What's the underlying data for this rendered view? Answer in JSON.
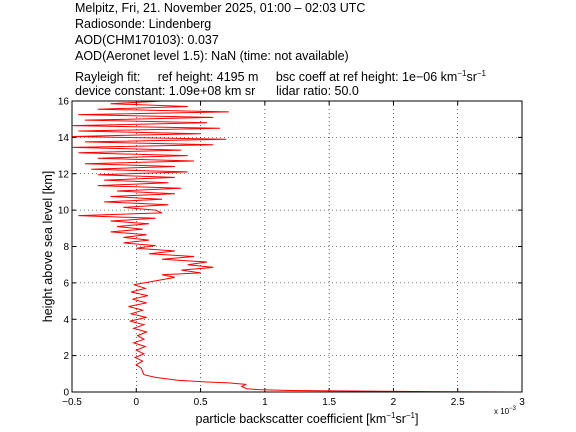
{
  "header": {
    "line1": "Melpitz, Fri, 21. November 2025, 01:00 – 02:03 UTC",
    "line2": "Radiosonde: Lindenberg",
    "line3": "AOD(CHM170103): 0.037",
    "line4": "AOD(Aeronet level 1.5): NaN   (time: not available)",
    "rayleigh_label": "Rayleigh fit:",
    "ref_height": "ref height: 4195 m",
    "bsc_coeff_prefix": "bsc coeff at ref height: 1e−06 km",
    "bsc_coeff_sup1": "−1",
    "bsc_coeff_mid": "sr",
    "bsc_coeff_sup2": "−1",
    "device_constant": "device constant: 1.09e+08 km sr",
    "lidar_ratio": "lidar ratio: 50.0"
  },
  "chart_data": {
    "type": "line",
    "xlabel_prefix": "particle backscatter coefficient [km",
    "xlabel_sup1": "−1",
    "xlabel_mid": "sr",
    "xlabel_sup2": "−1",
    "xlabel_suffix": "]",
    "ylabel": "height above sea level [km]",
    "x_exponent_label": "x 10",
    "x_exponent_sup": "−3",
    "xlim": [
      -0.5,
      3
    ],
    "ylim": [
      0,
      16
    ],
    "x_scale_factor": 0.001,
    "x_ticks": [
      -0.5,
      0,
      0.5,
      1,
      1.5,
      2,
      2.5,
      3
    ],
    "x_tick_labels": [
      "−0.5",
      "0",
      "0.5",
      "1",
      "1.5",
      "2",
      "2.5",
      "3"
    ],
    "y_ticks": [
      0,
      2,
      4,
      6,
      8,
      10,
      12,
      14,
      16
    ],
    "y_tick_labels": [
      "0",
      "2",
      "4",
      "6",
      "8",
      "10",
      "12",
      "14",
      "16"
    ],
    "grid": true,
    "series": [
      {
        "color": "#ff0000",
        "points": [
          [
            3.0,
            0.0
          ],
          [
            2.3,
            0.02
          ],
          [
            1.2,
            0.08
          ],
          [
            0.95,
            0.13
          ],
          [
            0.86,
            0.18
          ],
          [
            0.82,
            0.3
          ],
          [
            0.85,
            0.42
          ],
          [
            0.72,
            0.5
          ],
          [
            0.55,
            0.55
          ],
          [
            0.32,
            0.65
          ],
          [
            0.15,
            0.8
          ],
          [
            0.06,
            0.95
          ],
          [
            0.05,
            1.1
          ],
          [
            0.04,
            1.3
          ],
          [
            0.0,
            1.5
          ],
          [
            0.05,
            1.7
          ],
          [
            -0.01,
            1.9
          ],
          [
            0.06,
            2.1
          ],
          [
            0.0,
            2.3
          ],
          [
            0.07,
            2.5
          ],
          [
            -0.02,
            2.7
          ],
          [
            0.06,
            2.9
          ],
          [
            0.01,
            3.1
          ],
          [
            0.08,
            3.3
          ],
          [
            -0.02,
            3.5
          ],
          [
            0.06,
            3.7
          ],
          [
            -0.05,
            3.9
          ],
          [
            0.08,
            4.1
          ],
          [
            -0.04,
            4.3
          ],
          [
            0.05,
            4.5
          ],
          [
            -0.06,
            4.7
          ],
          [
            0.08,
            4.9
          ],
          [
            -0.03,
            5.1
          ],
          [
            0.09,
            5.3
          ],
          [
            -0.04,
            5.5
          ],
          [
            0.07,
            5.7
          ],
          [
            -0.02,
            5.9
          ],
          [
            0.1,
            6.05
          ],
          [
            0.3,
            6.3
          ],
          [
            0.2,
            6.45
          ],
          [
            0.5,
            6.55
          ],
          [
            0.35,
            6.7
          ],
          [
            0.6,
            6.85
          ],
          [
            0.4,
            7.0
          ],
          [
            0.55,
            7.15
          ],
          [
            0.2,
            7.3
          ],
          [
            0.45,
            7.45
          ],
          [
            0.1,
            7.6
          ],
          [
            0.3,
            7.75
          ],
          [
            0.0,
            7.9
          ],
          [
            0.15,
            8.05
          ],
          [
            -0.1,
            8.2
          ],
          [
            0.1,
            8.35
          ],
          [
            -0.1,
            8.5
          ],
          [
            0.08,
            8.65
          ],
          [
            -0.2,
            8.8
          ],
          [
            0.05,
            8.95
          ],
          [
            -0.15,
            9.1
          ],
          [
            0.1,
            9.25
          ],
          [
            -0.2,
            9.4
          ],
          [
            0.15,
            9.55
          ],
          [
            -0.45,
            9.7
          ],
          [
            0.2,
            9.85
          ],
          [
            0.15,
            10.0
          ],
          [
            -0.1,
            10.15
          ],
          [
            0.25,
            10.3
          ],
          [
            -0.25,
            10.45
          ],
          [
            0.2,
            10.6
          ],
          [
            -0.2,
            10.75
          ],
          [
            0.3,
            10.9
          ],
          [
            -0.15,
            11.05
          ],
          [
            0.35,
            11.2
          ],
          [
            -0.3,
            11.35
          ],
          [
            0.25,
            11.5
          ],
          [
            -0.25,
            11.65
          ],
          [
            0.3,
            11.8
          ],
          [
            -0.3,
            11.95
          ],
          [
            0.4,
            12.1
          ],
          [
            -0.35,
            12.25
          ],
          [
            0.3,
            12.4
          ],
          [
            -0.4,
            12.55
          ],
          [
            0.45,
            12.7
          ],
          [
            -0.3,
            12.85
          ],
          [
            0.4,
            13.0
          ],
          [
            -0.45,
            13.15
          ],
          [
            0.35,
            13.3
          ],
          [
            -0.5,
            13.45
          ],
          [
            0.6,
            13.6
          ],
          [
            -0.4,
            13.75
          ],
          [
            0.7,
            13.9
          ],
          [
            -0.5,
            14.05
          ],
          [
            0.5,
            14.2
          ],
          [
            -0.45,
            14.35
          ],
          [
            0.65,
            14.5
          ],
          [
            -0.5,
            14.65
          ],
          [
            0.55,
            14.8
          ],
          [
            -0.4,
            14.95
          ],
          [
            0.6,
            15.1
          ],
          [
            -0.45,
            15.25
          ],
          [
            0.72,
            15.4
          ],
          [
            -0.3,
            15.55
          ],
          [
            0.4,
            15.7
          ],
          [
            -0.2,
            15.85
          ],
          [
            0.2,
            16.0
          ]
        ]
      }
    ]
  }
}
